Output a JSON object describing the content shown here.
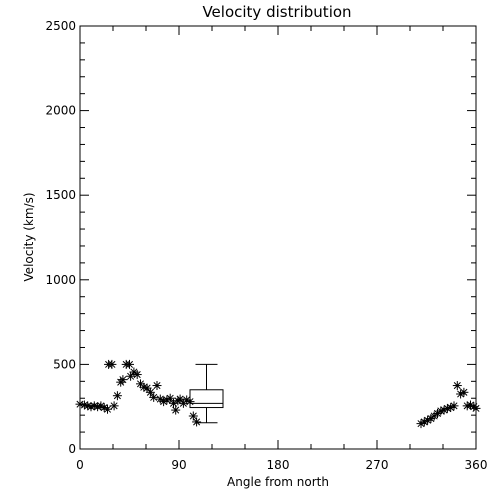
{
  "chart_data": {
    "type": "scatter",
    "title": "Velocity distribution",
    "xlabel": "Angle from north",
    "ylabel": "Velocity (km/s)",
    "xlim": [
      0,
      360
    ],
    "ylim": [
      0,
      2500
    ],
    "xticks": [
      0,
      90,
      180,
      270,
      360
    ],
    "xtick_labels": [
      "0",
      "90",
      "180",
      "270",
      "360"
    ],
    "yticks": [
      0,
      500,
      1000,
      1500,
      2000,
      2500
    ],
    "ytick_labels": [
      "0",
      "500",
      "1000",
      "1500",
      "2000",
      "2500"
    ],
    "grid": false,
    "marker": "asterisk",
    "marker_color": "#000000",
    "points": [
      [
        0,
        265
      ],
      [
        4,
        260
      ],
      [
        7,
        255
      ],
      [
        10,
        250
      ],
      [
        13,
        255
      ],
      [
        16,
        250
      ],
      [
        19,
        255
      ],
      [
        22,
        245
      ],
      [
        25,
        235
      ],
      [
        26,
        500
      ],
      [
        29,
        500
      ],
      [
        31,
        255
      ],
      [
        34,
        315
      ],
      [
        37,
        395
      ],
      [
        39,
        410
      ],
      [
        42,
        500
      ],
      [
        45,
        500
      ],
      [
        46,
        430
      ],
      [
        49,
        455
      ],
      [
        52,
        440
      ],
      [
        55,
        385
      ],
      [
        58,
        365
      ],
      [
        61,
        360
      ],
      [
        64,
        335
      ],
      [
        67,
        305
      ],
      [
        70,
        375
      ],
      [
        73,
        295
      ],
      [
        76,
        280
      ],
      [
        79,
        290
      ],
      [
        82,
        300
      ],
      [
        85,
        270
      ],
      [
        87,
        230
      ],
      [
        89,
        285
      ],
      [
        91,
        295
      ],
      [
        94,
        270
      ],
      [
        97,
        290
      ],
      [
        100,
        280
      ],
      [
        103,
        195
      ],
      [
        106,
        160
      ],
      [
        310,
        150
      ],
      [
        313,
        160
      ],
      [
        316,
        170
      ],
      [
        319,
        180
      ],
      [
        322,
        195
      ],
      [
        325,
        210
      ],
      [
        328,
        225
      ],
      [
        331,
        230
      ],
      [
        334,
        240
      ],
      [
        337,
        245
      ],
      [
        340,
        255
      ],
      [
        343,
        375
      ],
      [
        346,
        325
      ],
      [
        349,
        335
      ],
      [
        352,
        255
      ],
      [
        355,
        260
      ],
      [
        358,
        250
      ],
      [
        360,
        240
      ]
    ],
    "boxplot": {
      "x_range": [
        100,
        130
      ],
      "whisker_low": 155,
      "q1": 245,
      "median": 270,
      "q3": 350,
      "whisker_high": 500
    }
  }
}
